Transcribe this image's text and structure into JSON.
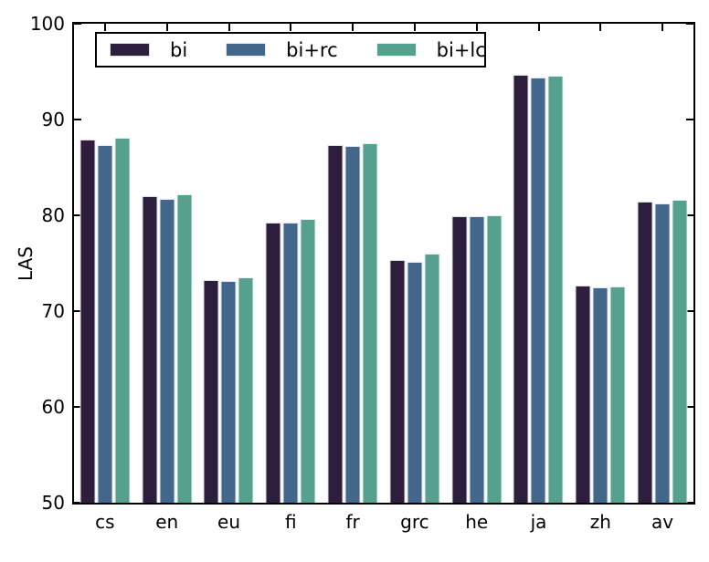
{
  "chart_data": {
    "type": "bar",
    "title": "",
    "xlabel": "",
    "ylabel": "LAS",
    "ylim": [
      50,
      100
    ],
    "yticks": [
      50,
      60,
      70,
      80,
      90,
      100
    ],
    "grid": false,
    "legend_position": "upper left",
    "categories": [
      "cs",
      "en",
      "eu",
      "fi",
      "fr",
      "grc",
      "he",
      "ja",
      "zh",
      "av"
    ],
    "series": [
      {
        "name": "bi",
        "color": "#2d1e3e",
        "values": [
          87.9,
          82.0,
          73.2,
          79.2,
          87.3,
          75.3,
          79.9,
          94.7,
          72.7,
          81.4
        ]
      },
      {
        "name": "bi+rc",
        "color": "#43668b",
        "values": [
          87.3,
          81.7,
          73.1,
          79.2,
          87.2,
          75.1,
          79.9,
          94.4,
          72.5,
          81.2
        ]
      },
      {
        "name": "bi+lc",
        "color": "#56a08f",
        "values": [
          88.1,
          82.2,
          73.5,
          79.6,
          87.5,
          76.0,
          80.0,
          94.6,
          72.6,
          81.6
        ]
      }
    ]
  }
}
